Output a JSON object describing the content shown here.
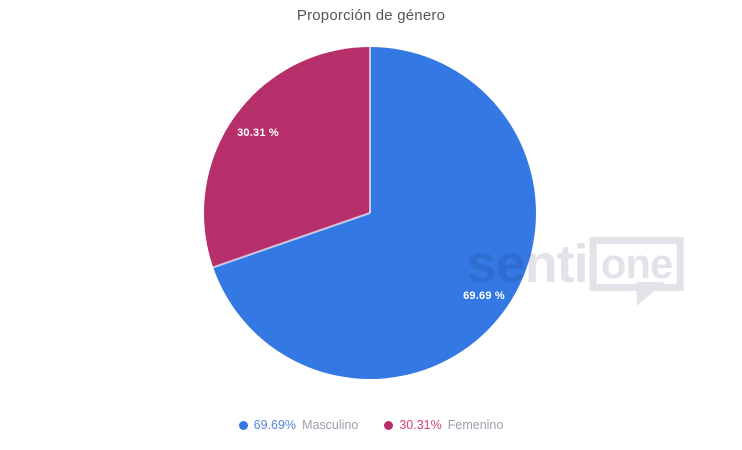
{
  "title": "Proporción de género",
  "chart_data": {
    "type": "pie",
    "title": "Proporción de género",
    "start_angle_deg": 0,
    "direction": "clockwise",
    "legend_position": "bottom",
    "grid": false,
    "series": [
      {
        "name": "Masculino",
        "value": 69.69,
        "percent_label": "69.69 %",
        "color": "#3478e3"
      },
      {
        "name": "Femenino",
        "value": 30.31,
        "percent_label": "30.31 %",
        "color": "#b62f6a"
      }
    ]
  },
  "legend": {
    "items": [
      {
        "value": "69.69%",
        "label": "Masculino",
        "dot_color": "#3478e3",
        "value_color": "#5585d9"
      },
      {
        "value": "30.31%",
        "label": "Femenino",
        "dot_color": "#b62f6a",
        "value_color": "#cf4277"
      }
    ]
  },
  "watermark": {
    "text_left": "senti",
    "text_bubble": "one"
  }
}
